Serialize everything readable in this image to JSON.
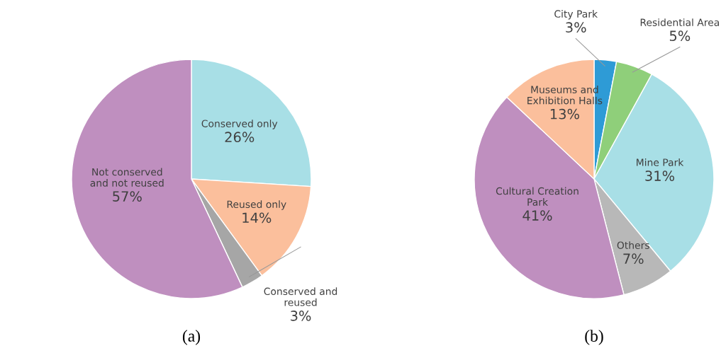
{
  "chart_data": [
    {
      "type": "pie",
      "title": "(a)",
      "categories": [
        "Conserved only",
        "Reused only",
        "Conserved and\nreused",
        "Not conserved\nand not reused"
      ],
      "values": [
        26,
        14,
        3,
        57
      ],
      "value_labels": [
        "26%",
        "14%",
        "3%",
        "57%"
      ],
      "colors": [
        "#a8dfe6",
        "#fbbf9c",
        "#a6a6a6",
        "#bf8fbf"
      ]
    },
    {
      "type": "pie",
      "title": "(b)",
      "categories": [
        "City Park",
        "Residential Area",
        "Mine Park",
        "Others",
        "Cultural Creation\nPark",
        "Museums and\nExhibition Halls"
      ],
      "values": [
        3,
        5,
        31,
        7,
        41,
        13
      ],
      "value_labels": [
        "3%",
        "5%",
        "31%",
        "7%",
        "41%",
        "13%"
      ],
      "colors": [
        "#2e9bd6",
        "#8fcf7a",
        "#a8dfe6",
        "#b8b8b8",
        "#bf8fbf",
        "#fbbf9c"
      ]
    }
  ]
}
